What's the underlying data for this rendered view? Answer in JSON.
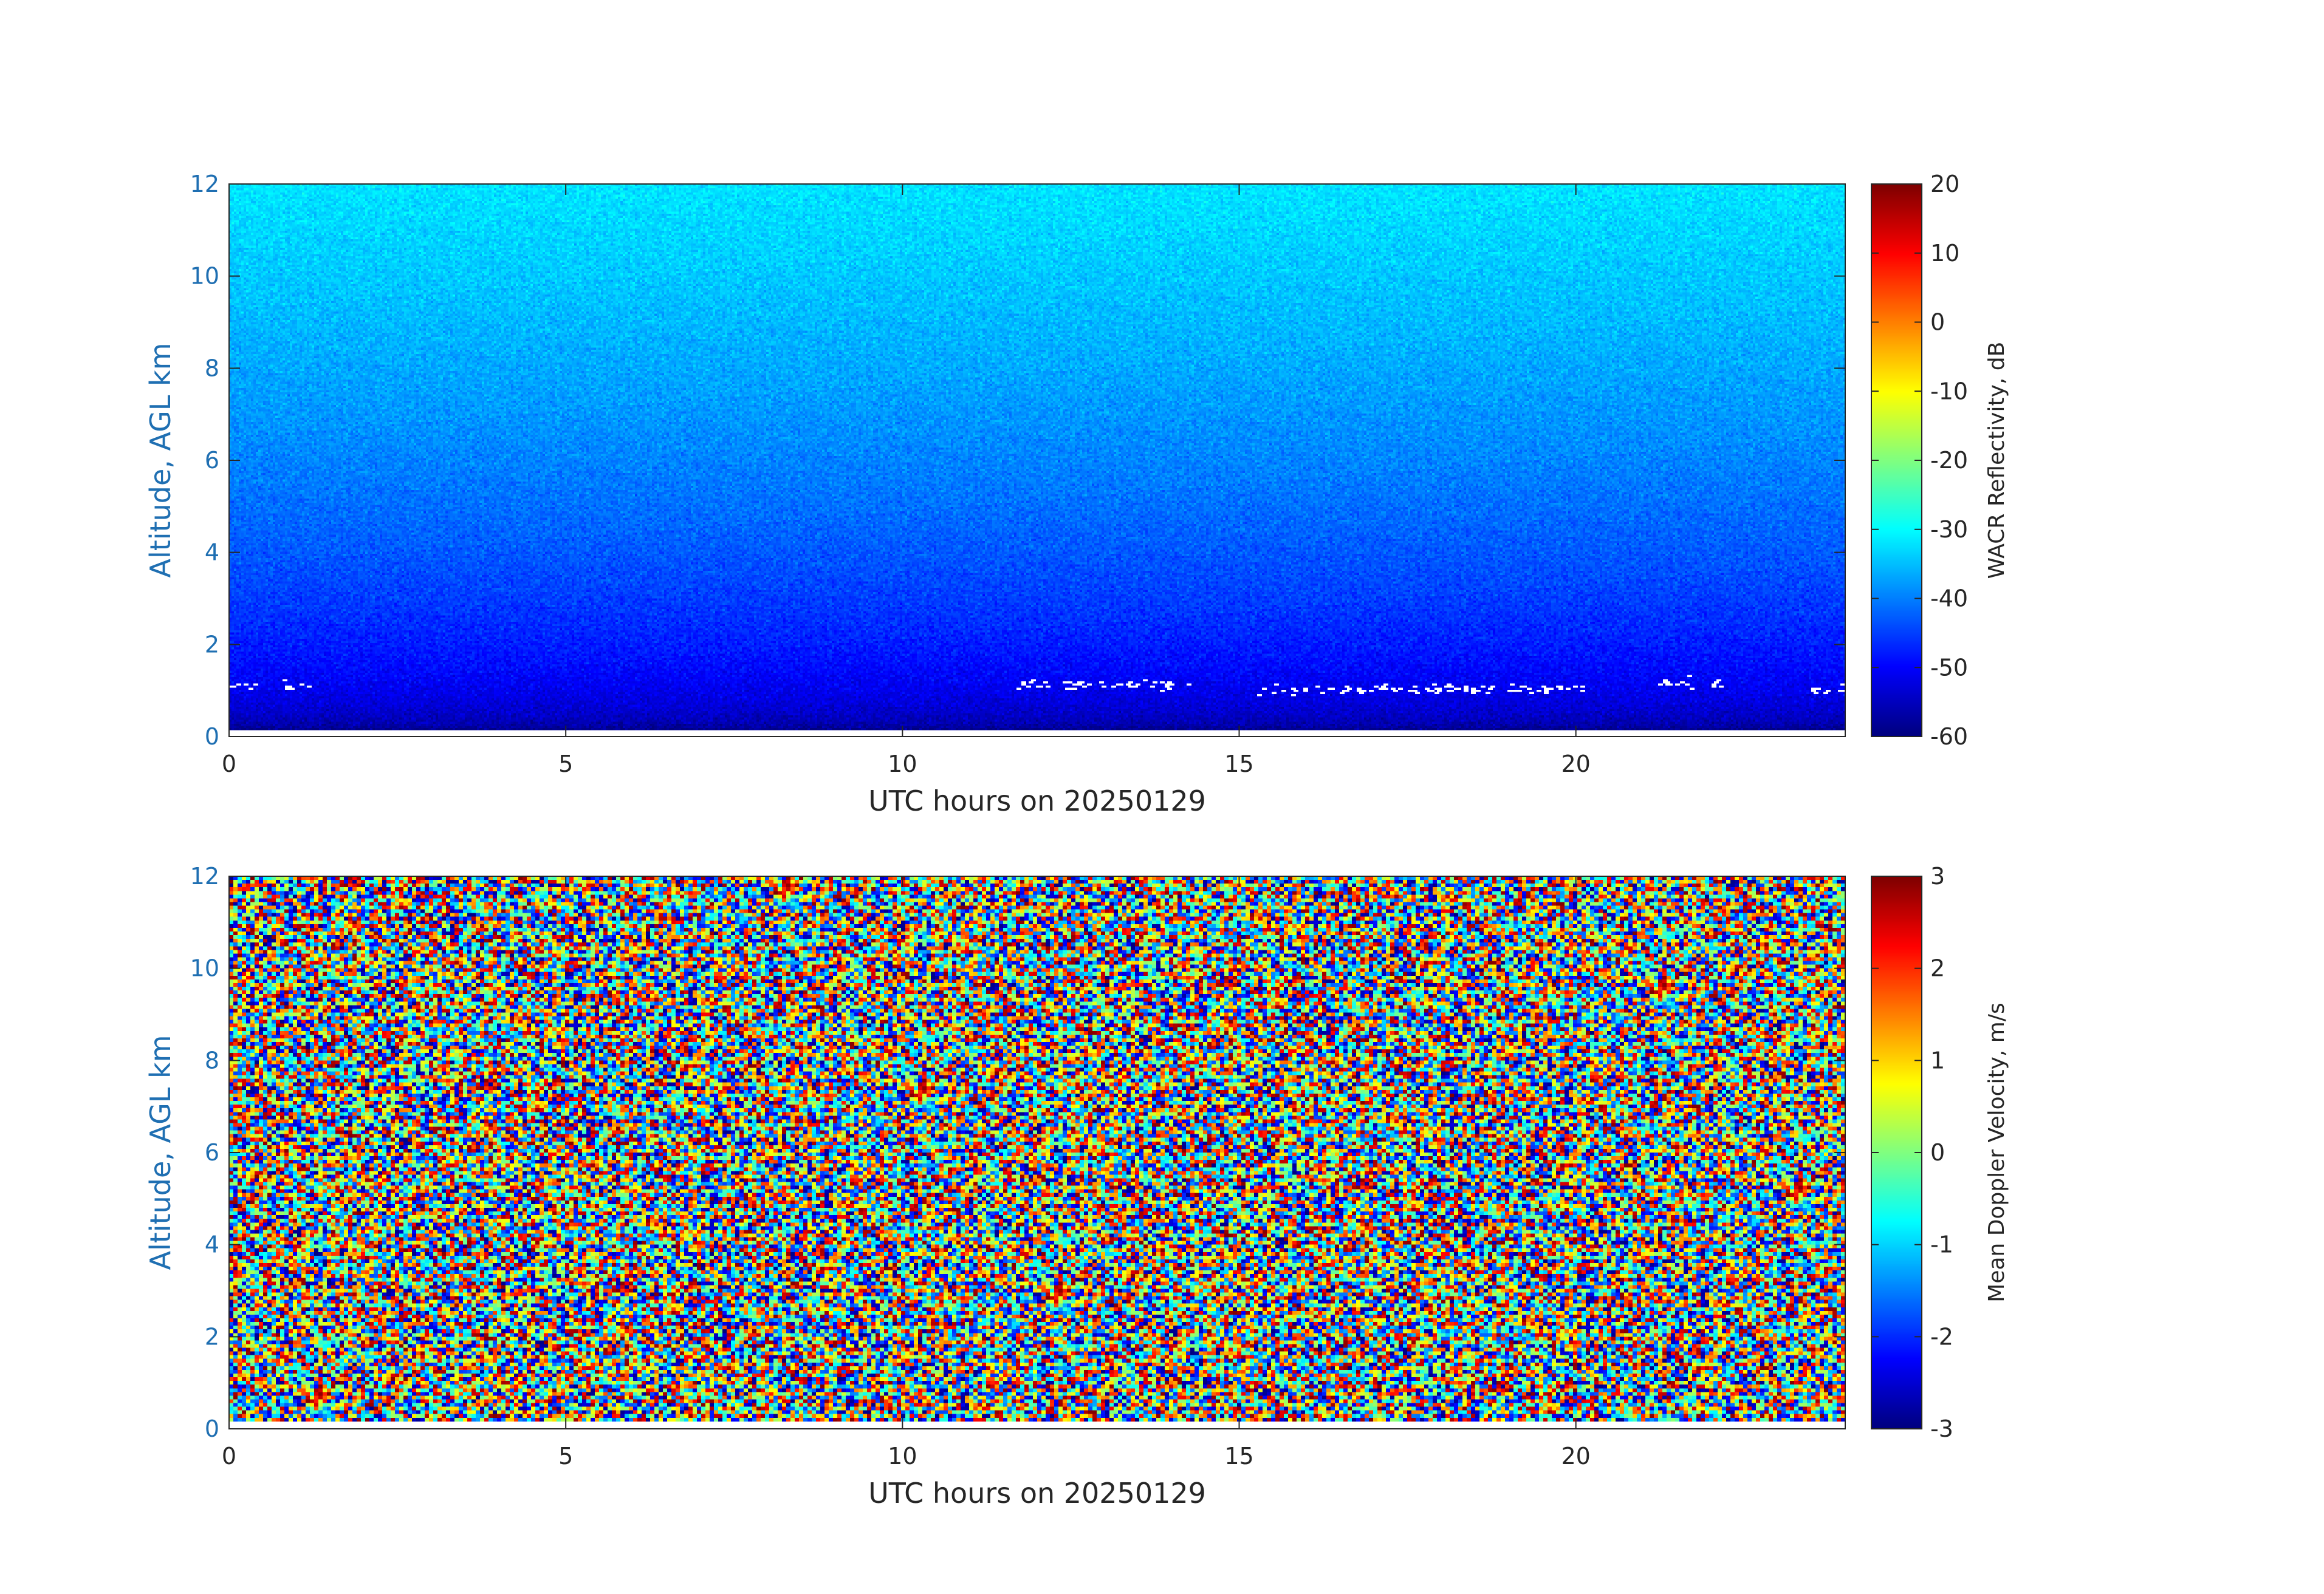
{
  "chart_data": [
    {
      "type": "heatmap",
      "xlabel": "UTC hours on 20250129",
      "ylabel": "Altitude, AGL km",
      "xlim": [
        0,
        24
      ],
      "ylim": [
        0,
        12
      ],
      "x_ticks": [
        0,
        5,
        10,
        15,
        20
      ],
      "y_ticks": [
        0,
        2,
        4,
        6,
        8,
        10,
        12
      ],
      "colorbar": {
        "label": "WACR Reflectivity, dB",
        "range": [
          -60,
          20
        ],
        "ticks": [
          20,
          10,
          0,
          -10,
          -20,
          -30,
          -40,
          -50,
          -60
        ],
        "colormap": "jet"
      },
      "features": {
        "background_low_altitude_dB": -60,
        "background_high_altitude_dB": -32,
        "cloud_echo_altitude_km": [
          0.8,
          1.5
        ],
        "cloud_echo_segments_hours": [
          [
            0.0,
            0.4
          ],
          [
            0.8,
            1.2
          ],
          [
            11.7,
            14.3
          ],
          [
            15.2,
            20.2
          ],
          [
            21.2,
            22.2
          ],
          [
            23.5,
            24.0
          ]
        ],
        "cloud_echo_color": "#ffffff"
      }
    },
    {
      "type": "heatmap",
      "xlabel": "UTC hours on 20250129",
      "ylabel": "Altitude, AGL km",
      "xlim": [
        0,
        24
      ],
      "ylim": [
        0,
        12
      ],
      "x_ticks": [
        0,
        5,
        10,
        15,
        20
      ],
      "y_ticks": [
        0,
        2,
        4,
        6,
        8,
        10,
        12
      ],
      "colorbar": {
        "label": "Mean Doppler Velocity, m/s",
        "range": [
          -3,
          3
        ],
        "ticks": [
          3,
          2,
          1,
          0,
          -1,
          -2,
          -3
        ],
        "colormap": "jet"
      },
      "features": {
        "field": "random noise across full range"
      }
    }
  ],
  "colors": {
    "ylabel": "#1f6fb2",
    "xlabel": "#262626",
    "axis": "#262626"
  }
}
